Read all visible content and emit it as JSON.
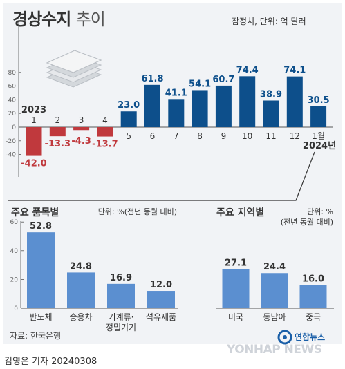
{
  "title_main": "경상수지",
  "title_sub": "추이",
  "unit_top": "잠정치, 단위: 억 달러",
  "source": "자료: 한국은행",
  "byline": "김영은 기자  20240308",
  "brand_ko": "연합뉴스",
  "brand_en": "YONHAP NEWS",
  "colors": {
    "positive": "#0d4f8b",
    "negative": "#c0393d",
    "category": "#5b8fd0",
    "panel": "#f1f3f6"
  },
  "chart_data": [
    {
      "type": "bar",
      "title": "",
      "unit": "잠정치, 단위: 억 달러",
      "categories": [
        "1",
        "2",
        "3",
        "4",
        "5",
        "6",
        "7",
        "8",
        "9",
        "10",
        "11",
        "12",
        "1월"
      ],
      "values": [
        -42.0,
        -13.3,
        -4.3,
        -13.7,
        23.0,
        61.8,
        41.1,
        54.1,
        60.7,
        74.4,
        38.9,
        74.1,
        30.5
      ],
      "value_labels": [
        "-42.0",
        "-13.3",
        "-4.3",
        "-13.7",
        "23.0",
        "61.8",
        "41.1",
        "54.1",
        "60.7",
        "74.4",
        "38.9",
        "74.1",
        "30.5"
      ],
      "year_labels": [
        "2023",
        "2024년"
      ],
      "y_ticks": [
        80,
        60,
        40,
        20,
        0,
        -20,
        -40
      ],
      "ylim": [
        -47,
        82
      ],
      "grid": false
    },
    {
      "type": "bar",
      "title": "주요 품목별",
      "unit": "단위: %(전년 동월 대비)",
      "categories": [
        "반도체",
        "승용차",
        "기계류·\n정밀기기",
        "석유제품"
      ],
      "values": [
        52.8,
        24.8,
        16.9,
        12.0
      ],
      "value_labels": [
        "52.8",
        "24.8",
        "16.9",
        "12.0"
      ],
      "y_ticks": [
        60,
        40,
        20,
        0
      ],
      "ylim": [
        0,
        60
      ],
      "grid": false
    },
    {
      "type": "bar",
      "title": "주요 지역별",
      "unit": "단위: %\n(전년 동월 대비)",
      "categories": [
        "미국",
        "동남아",
        "중국"
      ],
      "values": [
        27.1,
        24.4,
        16.0
      ],
      "value_labels": [
        "27.1",
        "24.4",
        "16.0"
      ],
      "ylim": [
        0,
        60
      ],
      "grid": false
    }
  ]
}
